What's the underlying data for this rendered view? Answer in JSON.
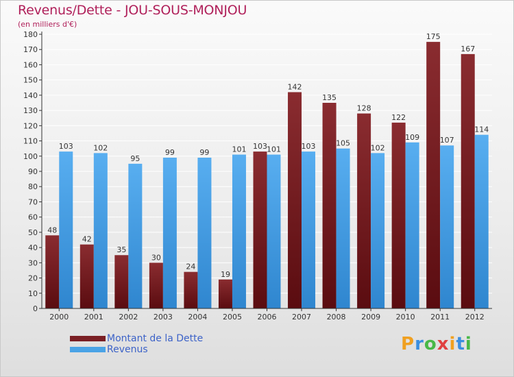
{
  "title": "Revenus/Dette - JOU-SOUS-MONJOU",
  "subtitle": "(en milliers d'€)",
  "logo": {
    "text": "Proxiti",
    "letter_colors": [
      "#f0a020",
      "#3a8ee0",
      "#48b848",
      "#e04040",
      "#f0a020",
      "#3a8ee0",
      "#48b848"
    ]
  },
  "colors": {
    "dette": "#7a1f24",
    "revenus": "#4aa3e6",
    "axis": "#333333",
    "grid": "#ffffff",
    "title": "#b0205a",
    "legend_text": "#3d63c8"
  },
  "chart_data": {
    "type": "bar",
    "title": "Revenus/Dette - JOU-SOUS-MONJOU",
    "subtitle": "(en milliers d'€)",
    "categories": [
      "2000",
      "2001",
      "2002",
      "2003",
      "2004",
      "2005",
      "2006",
      "2007",
      "2008",
      "2009",
      "2010",
      "2011",
      "2012"
    ],
    "series": [
      {
        "name": "Montant de la Dette",
        "values": [
          48,
          42,
          35,
          30,
          24,
          19,
          103,
          142,
          135,
          128,
          122,
          175,
          167
        ]
      },
      {
        "name": "Revenus",
        "values": [
          103,
          102,
          95,
          99,
          99,
          101,
          101,
          103,
          105,
          102,
          109,
          107,
          114
        ]
      }
    ],
    "ylim": [
      0,
      180
    ],
    "yticks": [
      0,
      10,
      20,
      30,
      40,
      50,
      60,
      70,
      80,
      90,
      100,
      110,
      120,
      130,
      140,
      150,
      160,
      170,
      180
    ],
    "grid": true,
    "legend": "bottom-left",
    "data_labels": true
  }
}
